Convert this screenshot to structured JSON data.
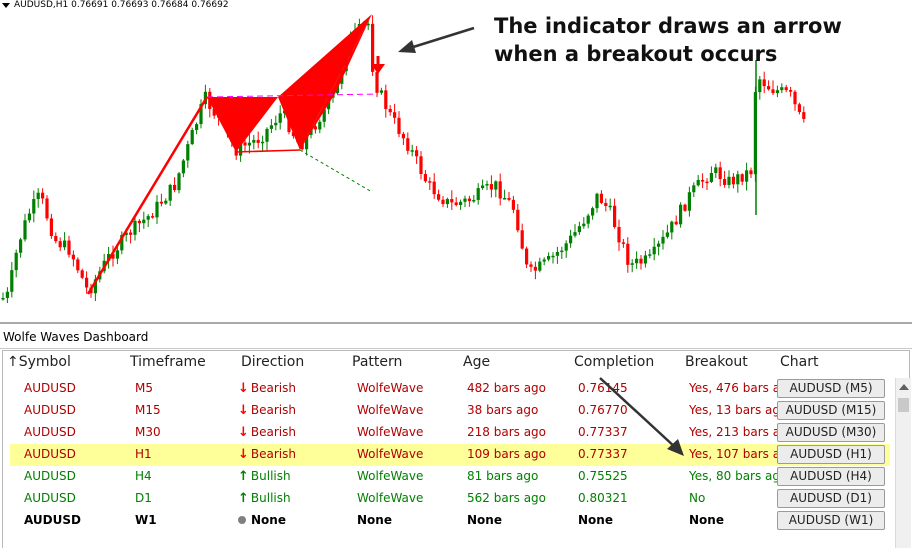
{
  "chart": {
    "title": "AUDUSD,H1  0.76691 0.76693 0.76684 0.76692",
    "callout_line1": "The indicator draws an arrow",
    "callout_line2": "when a breakout occurs",
    "bull_color": "#008000",
    "bear_color": "#ff0000",
    "wolfe_color": "#ff0000",
    "projection_color": "#008000"
  },
  "dashboard": {
    "title": "Wolfe Waves Dashboard",
    "sort_icon": "up-arrow-icon",
    "columns": {
      "symbol": "Symbol",
      "timeframe": "Timeframe",
      "direction": "Direction",
      "pattern": "Pattern",
      "age": "Age",
      "completion": "Completion",
      "breakout": "Breakout",
      "chart": "Chart"
    },
    "rows": [
      {
        "symbol": "AUDUSD",
        "timeframe": "M5",
        "dir_icon": "↓",
        "direction": "Bearish",
        "pattern": "WolfeWave",
        "age": "482 bars ago",
        "completion": "0.76145",
        "breakout": "Yes, 476 bars a",
        "chart": "AUDUSD (M5)",
        "color": "#b00000",
        "dir_color": "#ff0000",
        "highlight": false,
        "bold": false
      },
      {
        "symbol": "AUDUSD",
        "timeframe": "M15",
        "dir_icon": "↓",
        "direction": "Bearish",
        "pattern": "WolfeWave",
        "age": "38 bars ago",
        "completion": "0.76770",
        "breakout": "Yes, 13 bars ag",
        "chart": "AUDUSD (M15)",
        "color": "#b00000",
        "dir_color": "#ff0000",
        "highlight": false,
        "bold": false
      },
      {
        "symbol": "AUDUSD",
        "timeframe": "M30",
        "dir_icon": "↓",
        "direction": "Bearish",
        "pattern": "WolfeWave",
        "age": "218 bars ago",
        "completion": "0.77337",
        "breakout": "Yes, 213 bars a",
        "chart": "AUDUSD (M30)",
        "color": "#b00000",
        "dir_color": "#ff0000",
        "highlight": false,
        "bold": false
      },
      {
        "symbol": "AUDUSD",
        "timeframe": "H1",
        "dir_icon": "↓",
        "direction": "Bearish",
        "pattern": "WolfeWave",
        "age": "109 bars ago",
        "completion": "0.77337",
        "breakout": "Yes, 107 bars a",
        "chart": "AUDUSD (H1)",
        "color": "#b00000",
        "dir_color": "#ff0000",
        "highlight": true,
        "bold": false
      },
      {
        "symbol": "AUDUSD",
        "timeframe": "H4",
        "dir_icon": "↑",
        "direction": "Bullish",
        "pattern": "WolfeWave",
        "age": "81 bars ago",
        "completion": "0.75525",
        "breakout": "Yes, 80 bars ag",
        "chart": "AUDUSD (H4)",
        "color": "#008000",
        "dir_color": "#008000",
        "highlight": false,
        "bold": false
      },
      {
        "symbol": "AUDUSD",
        "timeframe": "D1",
        "dir_icon": "↑",
        "direction": "Bullish",
        "pattern": "WolfeWave",
        "age": "562 bars ago",
        "completion": "0.80321",
        "breakout": "No",
        "chart": "AUDUSD (D1)",
        "color": "#008000",
        "dir_color": "#008000",
        "highlight": false,
        "bold": false
      },
      {
        "symbol": "AUDUSD",
        "timeframe": "W1",
        "dir_icon": "●",
        "direction": "None",
        "pattern": "None",
        "age": "None",
        "completion": "None",
        "breakout": "None",
        "chart": "AUDUSD (W1)",
        "color": "#000000",
        "dir_color": "#808080",
        "highlight": false,
        "bold": true
      }
    ]
  }
}
